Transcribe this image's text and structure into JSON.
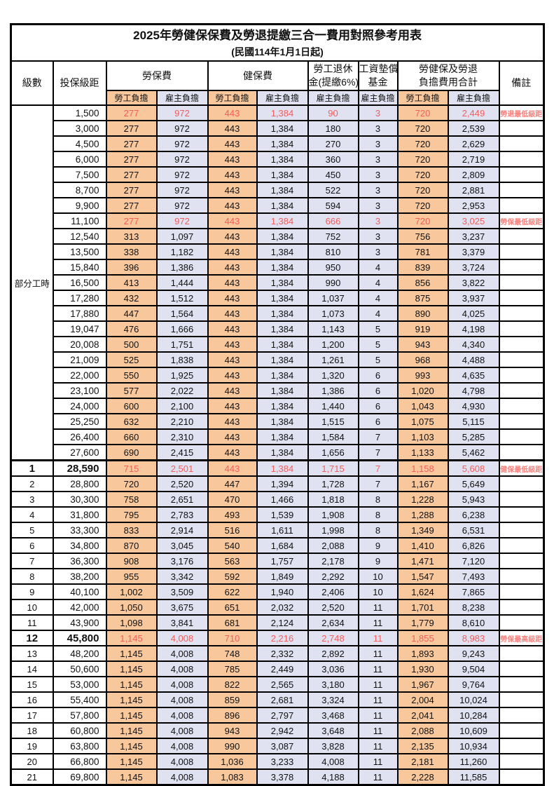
{
  "title": "2025年勞健保保費及勞退提繳三合一費用對照參考用表",
  "subtitle": "(民國114年1月1日起)",
  "header": {
    "level": "級數",
    "bracket": "投保級距",
    "labor_insurance": "勞保費",
    "health_insurance": "健保費",
    "pension_line1": "勞工退休",
    "pension_line2": "金(提繳6%)",
    "wage_fund_line1": "工資墊償",
    "wage_fund_line2": "基金",
    "total_line1": "勞健保及勞退",
    "total_line2": "負擔費用合計",
    "remark": "備註",
    "employee_label": "勞工負擔",
    "employer_label": "雇主負擔"
  },
  "part_time_label": "部分工時",
  "colors": {
    "employee_column_bg": "#F8C89C",
    "employer_column_bg": "#E0E2F2",
    "highlight_value_red": "#F25E5C",
    "remark_red": "#F8837F",
    "border_black": "#000000"
  },
  "rows": [
    {
      "level": "",
      "bracket": "1,500",
      "values": [
        "277",
        "972",
        "443",
        "1,384",
        "90",
        "3",
        "720",
        "2,449"
      ],
      "remark": "勞退最低級距",
      "red": true,
      "bold": false
    },
    {
      "level": "",
      "bracket": "3,000",
      "values": [
        "277",
        "972",
        "443",
        "1,384",
        "180",
        "3",
        "720",
        "2,539"
      ],
      "remark": "",
      "red": false,
      "bold": false
    },
    {
      "level": "",
      "bracket": "4,500",
      "values": [
        "277",
        "972",
        "443",
        "1,384",
        "270",
        "3",
        "720",
        "2,629"
      ],
      "remark": "",
      "red": false,
      "bold": false
    },
    {
      "level": "",
      "bracket": "6,000",
      "values": [
        "277",
        "972",
        "443",
        "1,384",
        "360",
        "3",
        "720",
        "2,719"
      ],
      "remark": "",
      "red": false,
      "bold": false
    },
    {
      "level": "",
      "bracket": "7,500",
      "values": [
        "277",
        "972",
        "443",
        "1,384",
        "450",
        "3",
        "720",
        "2,809"
      ],
      "remark": "",
      "red": false,
      "bold": false
    },
    {
      "level": "",
      "bracket": "8,700",
      "values": [
        "277",
        "972",
        "443",
        "1,384",
        "522",
        "3",
        "720",
        "2,881"
      ],
      "remark": "",
      "red": false,
      "bold": false
    },
    {
      "level": "",
      "bracket": "9,900",
      "values": [
        "277",
        "972",
        "443",
        "1,384",
        "594",
        "3",
        "720",
        "2,953"
      ],
      "remark": "",
      "red": false,
      "bold": false
    },
    {
      "level": "",
      "bracket": "11,100",
      "values": [
        "277",
        "972",
        "443",
        "1,384",
        "666",
        "3",
        "720",
        "3,025"
      ],
      "remark": "勞保最低級距",
      "red": true,
      "bold": false
    },
    {
      "level": "",
      "bracket": "12,540",
      "values": [
        "313",
        "1,097",
        "443",
        "1,384",
        "752",
        "3",
        "756",
        "3,237"
      ],
      "remark": "",
      "red": false,
      "bold": false
    },
    {
      "level": "",
      "bracket": "13,500",
      "values": [
        "338",
        "1,182",
        "443",
        "1,384",
        "810",
        "3",
        "781",
        "3,379"
      ],
      "remark": "",
      "red": false,
      "bold": false
    },
    {
      "level": "",
      "bracket": "15,840",
      "values": [
        "396",
        "1,386",
        "443",
        "1,384",
        "950",
        "4",
        "839",
        "3,724"
      ],
      "remark": "",
      "red": false,
      "bold": false
    },
    {
      "level": "",
      "bracket": "16,500",
      "values": [
        "413",
        "1,444",
        "443",
        "1,384",
        "990",
        "4",
        "856",
        "3,822"
      ],
      "remark": "",
      "red": false,
      "bold": false
    },
    {
      "level": "",
      "bracket": "17,280",
      "values": [
        "432",
        "1,512",
        "443",
        "1,384",
        "1,037",
        "4",
        "875",
        "3,937"
      ],
      "remark": "",
      "red": false,
      "bold": false
    },
    {
      "level": "",
      "bracket": "17,880",
      "values": [
        "447",
        "1,564",
        "443",
        "1,384",
        "1,073",
        "4",
        "890",
        "4,025"
      ],
      "remark": "",
      "red": false,
      "bold": false
    },
    {
      "level": "",
      "bracket": "19,047",
      "values": [
        "476",
        "1,666",
        "443",
        "1,384",
        "1,143",
        "5",
        "919",
        "4,198"
      ],
      "remark": "",
      "red": false,
      "bold": false
    },
    {
      "level": "",
      "bracket": "20,008",
      "values": [
        "500",
        "1,751",
        "443",
        "1,384",
        "1,200",
        "5",
        "943",
        "4,340"
      ],
      "remark": "",
      "red": false,
      "bold": false
    },
    {
      "level": "",
      "bracket": "21,009",
      "values": [
        "525",
        "1,838",
        "443",
        "1,384",
        "1,261",
        "5",
        "968",
        "4,488"
      ],
      "remark": "",
      "red": false,
      "bold": false
    },
    {
      "level": "",
      "bracket": "22,000",
      "values": [
        "550",
        "1,925",
        "443",
        "1,384",
        "1,320",
        "6",
        "993",
        "4,635"
      ],
      "remark": "",
      "red": false,
      "bold": false
    },
    {
      "level": "",
      "bracket": "23,100",
      "values": [
        "577",
        "2,022",
        "443",
        "1,384",
        "1,386",
        "6",
        "1,020",
        "4,798"
      ],
      "remark": "",
      "red": false,
      "bold": false
    },
    {
      "level": "",
      "bracket": "24,000",
      "values": [
        "600",
        "2,100",
        "443",
        "1,384",
        "1,440",
        "6",
        "1,043",
        "4,930"
      ],
      "remark": "",
      "red": false,
      "bold": false
    },
    {
      "level": "",
      "bracket": "25,250",
      "values": [
        "632",
        "2,210",
        "443",
        "1,384",
        "1,515",
        "6",
        "1,075",
        "5,115"
      ],
      "remark": "",
      "red": false,
      "bold": false
    },
    {
      "level": "",
      "bracket": "26,400",
      "values": [
        "660",
        "2,310",
        "443",
        "1,384",
        "1,584",
        "7",
        "1,103",
        "5,285"
      ],
      "remark": "",
      "red": false,
      "bold": false
    },
    {
      "level": "",
      "bracket": "27,600",
      "values": [
        "690",
        "2,415",
        "443",
        "1,384",
        "1,656",
        "7",
        "1,133",
        "5,462"
      ],
      "remark": "",
      "red": false,
      "bold": false
    },
    {
      "level": "1",
      "bracket": "28,590",
      "values": [
        "715",
        "2,501",
        "443",
        "1,384",
        "1,715",
        "7",
        "1,158",
        "5,608"
      ],
      "remark": "健保最低級距",
      "red": true,
      "bold": true
    },
    {
      "level": "2",
      "bracket": "28,800",
      "values": [
        "720",
        "2,520",
        "447",
        "1,394",
        "1,728",
        "7",
        "1,167",
        "5,649"
      ],
      "remark": "",
      "red": false,
      "bold": false
    },
    {
      "level": "3",
      "bracket": "30,300",
      "values": [
        "758",
        "2,651",
        "470",
        "1,466",
        "1,818",
        "8",
        "1,228",
        "5,943"
      ],
      "remark": "",
      "red": false,
      "bold": false
    },
    {
      "level": "4",
      "bracket": "31,800",
      "values": [
        "795",
        "2,783",
        "493",
        "1,539",
        "1,908",
        "8",
        "1,288",
        "6,238"
      ],
      "remark": "",
      "red": false,
      "bold": false
    },
    {
      "level": "5",
      "bracket": "33,300",
      "values": [
        "833",
        "2,914",
        "516",
        "1,611",
        "1,998",
        "8",
        "1,349",
        "6,531"
      ],
      "remark": "",
      "red": false,
      "bold": false
    },
    {
      "level": "6",
      "bracket": "34,800",
      "values": [
        "870",
        "3,045",
        "540",
        "1,684",
        "2,088",
        "9",
        "1,410",
        "6,826"
      ],
      "remark": "",
      "red": false,
      "bold": false
    },
    {
      "level": "7",
      "bracket": "36,300",
      "values": [
        "908",
        "3,176",
        "563",
        "1,757",
        "2,178",
        "9",
        "1,471",
        "7,120"
      ],
      "remark": "",
      "red": false,
      "bold": false
    },
    {
      "level": "8",
      "bracket": "38,200",
      "values": [
        "955",
        "3,342",
        "592",
        "1,849",
        "2,292",
        "10",
        "1,547",
        "7,493"
      ],
      "remark": "",
      "red": false,
      "bold": false
    },
    {
      "level": "9",
      "bracket": "40,100",
      "values": [
        "1,002",
        "3,509",
        "622",
        "1,940",
        "2,406",
        "10",
        "1,624",
        "7,865"
      ],
      "remark": "",
      "red": false,
      "bold": false
    },
    {
      "level": "10",
      "bracket": "42,000",
      "values": [
        "1,050",
        "3,675",
        "651",
        "2,032",
        "2,520",
        "11",
        "1,701",
        "8,238"
      ],
      "remark": "",
      "red": false,
      "bold": false
    },
    {
      "level": "11",
      "bracket": "43,900",
      "values": [
        "1,098",
        "3,841",
        "681",
        "2,124",
        "2,634",
        "11",
        "1,779",
        "8,610"
      ],
      "remark": "",
      "red": false,
      "bold": false
    },
    {
      "level": "12",
      "bracket": "45,800",
      "values": [
        "1,145",
        "4,008",
        "710",
        "2,216",
        "2,748",
        "11",
        "1,855",
        "8,983"
      ],
      "remark": "勞保最高級距",
      "red": true,
      "bold": true
    },
    {
      "level": "13",
      "bracket": "48,200",
      "values": [
        "1,145",
        "4,008",
        "748",
        "2,332",
        "2,892",
        "11",
        "1,893",
        "9,243"
      ],
      "remark": "",
      "red": false,
      "bold": false
    },
    {
      "level": "14",
      "bracket": "50,600",
      "values": [
        "1,145",
        "4,008",
        "785",
        "2,449",
        "3,036",
        "11",
        "1,930",
        "9,504"
      ],
      "remark": "",
      "red": false,
      "bold": false
    },
    {
      "level": "15",
      "bracket": "53,000",
      "values": [
        "1,145",
        "4,008",
        "822",
        "2,565",
        "3,180",
        "11",
        "1,967",
        "9,764"
      ],
      "remark": "",
      "red": false,
      "bold": false
    },
    {
      "level": "16",
      "bracket": "55,400",
      "values": [
        "1,145",
        "4,008",
        "859",
        "2,681",
        "3,324",
        "11",
        "2,004",
        "10,024"
      ],
      "remark": "",
      "red": false,
      "bold": false
    },
    {
      "level": "17",
      "bracket": "57,800",
      "values": [
        "1,145",
        "4,008",
        "896",
        "2,797",
        "3,468",
        "11",
        "2,041",
        "10,284"
      ],
      "remark": "",
      "red": false,
      "bold": false
    },
    {
      "level": "18",
      "bracket": "60,800",
      "values": [
        "1,145",
        "4,008",
        "943",
        "2,942",
        "3,648",
        "11",
        "2,088",
        "10,609"
      ],
      "remark": "",
      "red": false,
      "bold": false
    },
    {
      "level": "19",
      "bracket": "63,800",
      "values": [
        "1,145",
        "4,008",
        "990",
        "3,087",
        "3,828",
        "11",
        "2,135",
        "10,934"
      ],
      "remark": "",
      "red": false,
      "bold": false
    },
    {
      "level": "20",
      "bracket": "66,800",
      "values": [
        "1,145",
        "4,008",
        "1,036",
        "3,233",
        "4,008",
        "11",
        "2,181",
        "11,260"
      ],
      "remark": "",
      "red": false,
      "bold": false
    },
    {
      "level": "21",
      "bracket": "69,800",
      "values": [
        "1,145",
        "4,008",
        "1,083",
        "3,378",
        "4,188",
        "11",
        "2,228",
        "11,585"
      ],
      "remark": "",
      "red": false,
      "bold": false
    }
  ]
}
